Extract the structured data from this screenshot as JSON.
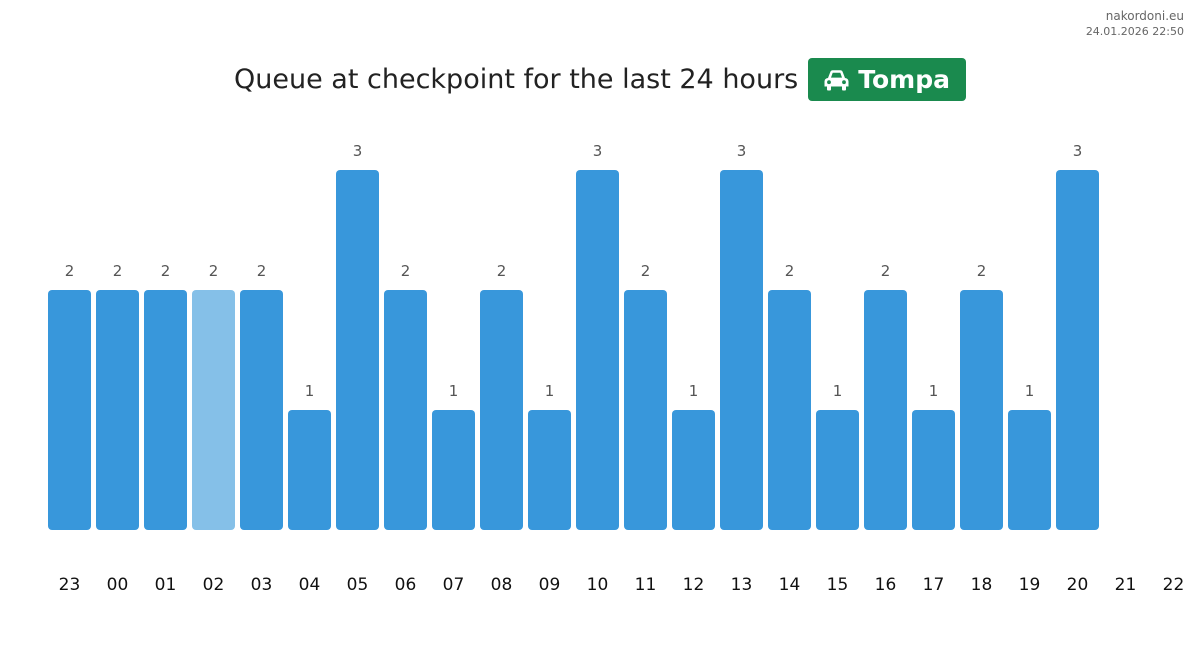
{
  "brand": {
    "site": "nakordoni.eu",
    "timestamp": "24.01.2026 22:50"
  },
  "header": {
    "title": "Queue at checkpoint for the last 24 hours",
    "checkpoint_name": "Tompa",
    "checkpoint_icon": "car-icon",
    "badge_color": "#1a8a4e"
  },
  "colors": {
    "bar": "#3897db",
    "bar_highlight": "#85c0e8",
    "value_label": "#555555",
    "hour_label": "#111111"
  },
  "chart_data": {
    "type": "bar",
    "categories": [
      "23",
      "00",
      "01",
      "02",
      "03",
      "04",
      "05",
      "06",
      "07",
      "08",
      "09",
      "10",
      "11",
      "12",
      "13",
      "14",
      "15",
      "16",
      "17",
      "18",
      "19",
      "20",
      "21",
      "22"
    ],
    "values": [
      2,
      2,
      2,
      2,
      2,
      1,
      3,
      2,
      1,
      2,
      1,
      3,
      2,
      1,
      3,
      2,
      1,
      2,
      1,
      2,
      1,
      3,
      null,
      null
    ],
    "highlighted_category": "02",
    "ylim": [
      0,
      3
    ],
    "grid": false,
    "legend": "none"
  }
}
